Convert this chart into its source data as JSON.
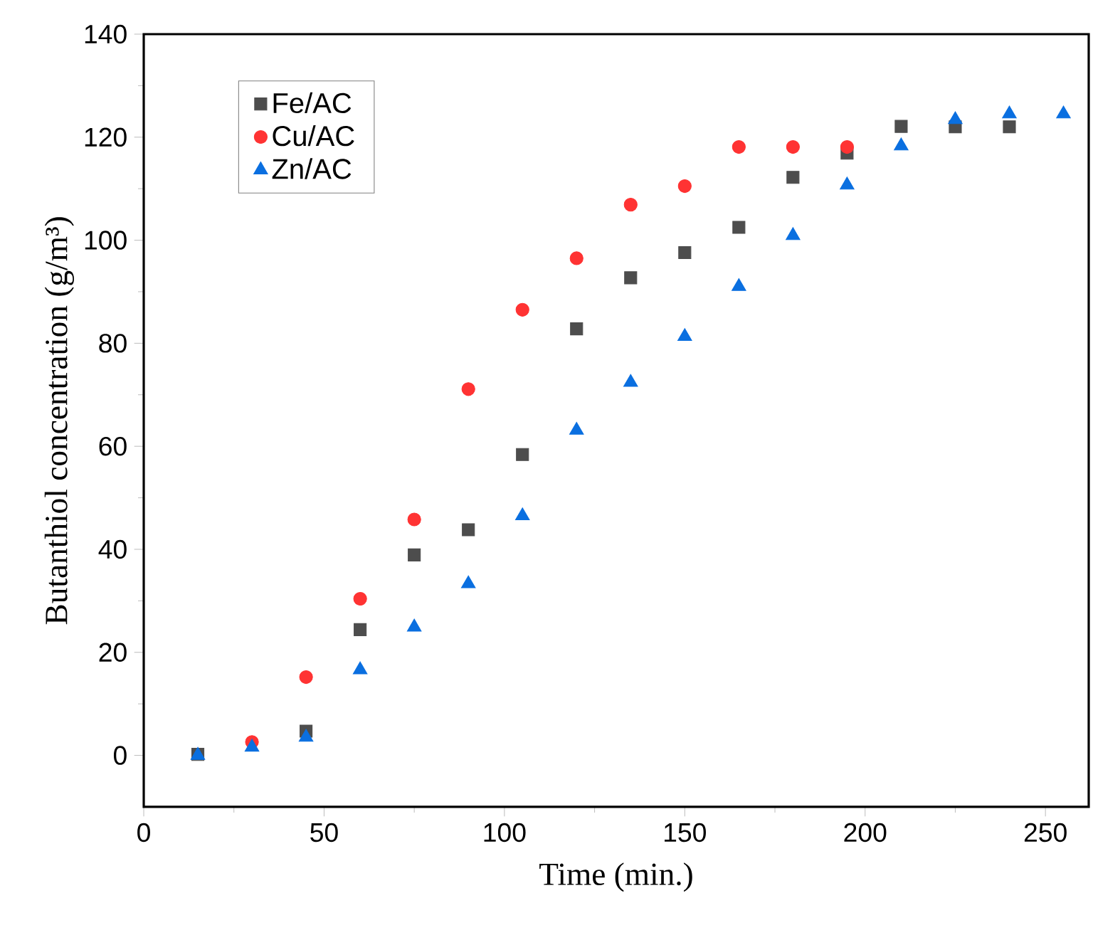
{
  "chart_data": {
    "type": "scatter",
    "xlabel": "Time (min.)",
    "ylabel": "Butanthiol concentration (g/m³)",
    "xlim": [
      0,
      262
    ],
    "ylim": [
      -10,
      140
    ],
    "xticks": [
      0,
      50,
      100,
      150,
      200,
      250
    ],
    "yticks": [
      0,
      20,
      40,
      60,
      80,
      100,
      120,
      140
    ],
    "legend": "top left",
    "grid": false,
    "series": [
      {
        "name": "Fe/AC",
        "color": "#4d4d4d",
        "marker": "square",
        "x": [
          15,
          45,
          60,
          75,
          90,
          105,
          120,
          135,
          150,
          165,
          180,
          195,
          210,
          225,
          240
        ],
        "values": [
          0.2,
          4.7,
          24.4,
          38.9,
          43.8,
          58.4,
          82.8,
          92.7,
          97.6,
          102.5,
          112.2,
          116.9,
          122.1,
          122,
          122
        ]
      },
      {
        "name": "Cu/AC",
        "color": "#ff3333",
        "marker": "circle",
        "x": [
          30,
          45,
          60,
          75,
          90,
          105,
          120,
          135,
          150,
          165,
          180,
          195
        ],
        "values": [
          2.6,
          15.2,
          30.4,
          45.8,
          71.1,
          86.5,
          96.5,
          106.9,
          110.5,
          118.1,
          118.1,
          118.1
        ]
      },
      {
        "name": "Zn/AC",
        "color": "#0a6fe0",
        "marker": "triangle",
        "x": [
          15,
          30,
          45,
          60,
          75,
          90,
          105,
          120,
          135,
          150,
          165,
          180,
          195,
          210,
          225,
          240,
          255
        ],
        "values": [
          0,
          1.6,
          3.5,
          16.6,
          24.9,
          33.3,
          46.5,
          63.1,
          72.4,
          81.3,
          91.0,
          100.9,
          110.7,
          118.3,
          123.4,
          124.5,
          124.5
        ]
      }
    ]
  }
}
